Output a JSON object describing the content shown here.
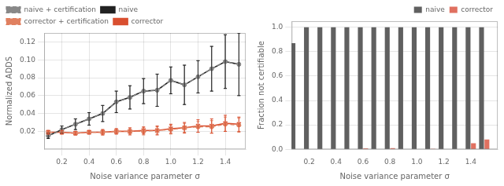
{
  "chart_data": [
    {
      "type": "line",
      "xlabel": "Noise variance parameter σ",
      "ylabel": "Normalized ADDS",
      "x": [
        0.1,
        0.2,
        0.3,
        0.4,
        0.5,
        0.6,
        0.7,
        0.8,
        0.9,
        1.0,
        1.1,
        1.2,
        1.3,
        1.4,
        1.5
      ],
      "series": [
        {
          "name": "naive + certification",
          "color": "#888888",
          "marker": "circle",
          "line_style": "dashed",
          "values": [
            0.015,
            0.022,
            0.028,
            0.034,
            0.04,
            0.053,
            0.058,
            0.065,
            0.066,
            0.077,
            0.072,
            0.081,
            0.09,
            0.098,
            0.095
          ],
          "errors": [
            0.003,
            0.004,
            0.006,
            0.007,
            0.009,
            0.012,
            0.013,
            0.014,
            0.018,
            0.015,
            0.022,
            0.018,
            0.025,
            0.03,
            0.035
          ]
        },
        {
          "name": "naive",
          "color": "#222222",
          "marker": "square",
          "line_style": "solid",
          "values": [
            0.015,
            0.022,
            0.028,
            0.034,
            0.04,
            0.053,
            0.058,
            0.065,
            0.066,
            0.077,
            0.072,
            0.081,
            0.09,
            0.098,
            0.095
          ],
          "errors": [
            0.003,
            0.004,
            0.006,
            0.007,
            0.009,
            0.012,
            0.013,
            0.014,
            0.018,
            0.015,
            0.022,
            0.018,
            0.025,
            0.03,
            0.035
          ]
        },
        {
          "name": "corrector + certification",
          "color": "#e08060",
          "marker": "circle",
          "line_style": "dashed",
          "values": [
            0.019,
            0.019,
            0.018,
            0.019,
            0.019,
            0.02,
            0.02,
            0.02,
            0.021,
            0.022,
            0.024,
            0.025,
            0.025,
            0.028,
            0.027
          ],
          "errors": [
            0.002,
            0.002,
            0.002,
            0.002,
            0.003,
            0.003,
            0.003,
            0.004,
            0.004,
            0.005,
            0.005,
            0.006,
            0.007,
            0.008,
            0.008
          ]
        },
        {
          "name": "corrector",
          "color": "#d94f30",
          "marker": "x",
          "line_style": "solid",
          "values": [
            0.019,
            0.019,
            0.018,
            0.019,
            0.019,
            0.02,
            0.02,
            0.021,
            0.021,
            0.023,
            0.024,
            0.026,
            0.026,
            0.029,
            0.028
          ],
          "errors": [
            0.002,
            0.002,
            0.002,
            0.002,
            0.003,
            0.003,
            0.004,
            0.004,
            0.005,
            0.005,
            0.006,
            0.007,
            0.008,
            0.009,
            0.008
          ]
        }
      ],
      "xlim": [
        0.07,
        1.55
      ],
      "ylim": [
        0.0,
        0.13
      ],
      "xticks": [
        0.2,
        0.4,
        0.6,
        0.8,
        {
          "value": 1.0,
          "label": "1.0"
        },
        1.2,
        1.4
      ],
      "yticks": [
        0.02,
        0.04,
        0.06,
        0.08,
        {
          "value": 0.1,
          "label": "0.10"
        },
        0.12
      ],
      "grid": true,
      "legend": "upper left"
    },
    {
      "type": "bar",
      "xlabel": "Noise variance parameter σ",
      "ylabel": "Fraction not certifiable",
      "x": [
        0.1,
        0.2,
        0.3,
        0.4,
        0.5,
        0.6,
        0.7,
        0.8,
        0.9,
        1.0,
        1.1,
        1.2,
        1.3,
        1.4,
        1.5
      ],
      "series": [
        {
          "name": "naive",
          "color": "#606060",
          "values": [
            0.87,
            1.0,
            1.0,
            1.0,
            1.0,
            1.0,
            1.0,
            1.0,
            1.0,
            1.0,
            1.0,
            1.0,
            1.0,
            1.0,
            1.0
          ]
        },
        {
          "name": "corrector",
          "color": "#e07060",
          "values": [
            0.0,
            0.0,
            0.0,
            0.0,
            0.0,
            0.008,
            0.0,
            0.01,
            0.0,
            0.0,
            0.005,
            0.0,
            0.0,
            0.05,
            0.08
          ]
        }
      ],
      "xlim": [
        0.07,
        1.6
      ],
      "ylim": [
        0.0,
        1.05
      ],
      "xticks": [
        0.2,
        0.4,
        0.6,
        0.8,
        {
          "value": 1.0,
          "label": "1.0"
        },
        1.2,
        1.4
      ],
      "yticks": [
        {
          "value": 0.0,
          "label": "0.0"
        },
        0.2,
        0.4,
        0.6,
        0.8,
        {
          "value": 1.0,
          "label": "1.0"
        }
      ],
      "grid": "y",
      "legend": "upper right"
    }
  ]
}
